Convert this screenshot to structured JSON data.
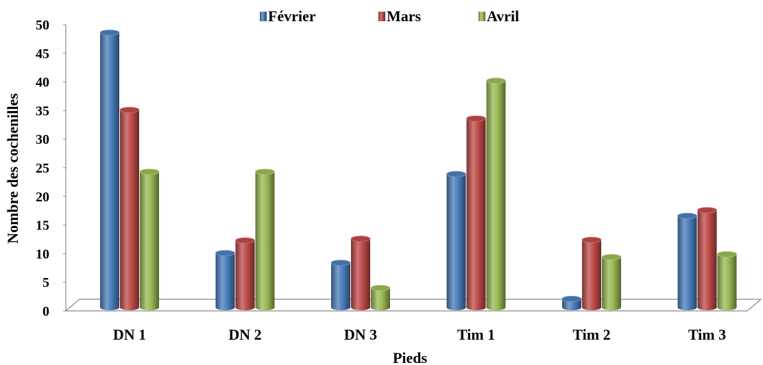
{
  "chart_data": {
    "type": "bar",
    "style": "3d-cylinder",
    "title": "",
    "xlabel": "Pieds",
    "ylabel": "Nombre des cochenilles",
    "ylim": [
      0,
      50
    ],
    "yticks": [
      "0",
      "5",
      "10",
      "15",
      "20",
      "25",
      "30",
      "35",
      "40",
      "45",
      "50"
    ],
    "categories": [
      "DN 1",
      "DN 2",
      "DN 3",
      "Tim 1",
      "Tim 2",
      "Tim 3"
    ],
    "series": [
      {
        "name": "Février",
        "color": "#4a7ebb",
        "values": [
          48,
          9.5,
          7.8,
          23.3,
          1.5,
          16
        ]
      },
      {
        "name": "Mars",
        "color": "#be4b48",
        "values": [
          34.5,
          11.7,
          12,
          33,
          11.8,
          17
        ]
      },
      {
        "name": "Avril",
        "color": "#98b954",
        "values": [
          23.7,
          23.7,
          3.4,
          39.6,
          8.8,
          9.3
        ]
      }
    ],
    "legend_position": "top",
    "grid": false
  }
}
